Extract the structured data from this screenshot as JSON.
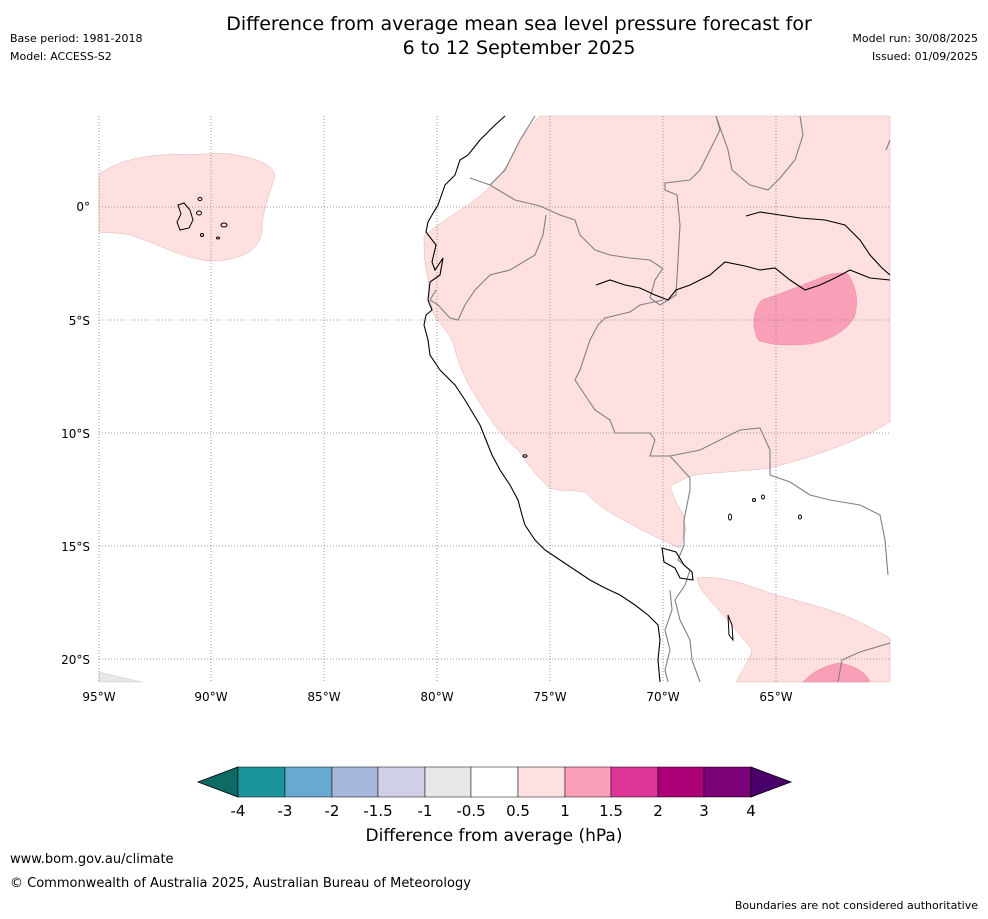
{
  "title": {
    "line1": "Difference from average mean sea level pressure forecast for",
    "line2": "6 to 12 September 2025"
  },
  "meta_left": {
    "base_period": "Base period: 1981-2018",
    "model": "Model: ACCESS-S2"
  },
  "meta_right": {
    "model_run": "Model run: 30/08/2025",
    "issued": "Issued: 01/09/2025"
  },
  "map": {
    "lat_labels": [
      "0°",
      "5°S",
      "10°S",
      "15°S",
      "20°S"
    ],
    "lon_labels": [
      "95°W",
      "90°W",
      "85°W",
      "80°W",
      "75°W",
      "70°W",
      "65°W"
    ]
  },
  "colorbar": {
    "title": "Difference from average (hPa)",
    "tick_labels": [
      "-4",
      "-3",
      "-2",
      "-1.5",
      "-1",
      "-0.5",
      "0.5",
      "1",
      "1.5",
      "2",
      "3",
      "4"
    ],
    "colors": {
      "lt_-4": "#0d6b63",
      "-4_-3": "#1a939a",
      "-3_-2": "#67a9d0",
      "-2_-1.5": "#a7b8dc",
      "-1.5_-1": "#cfd0e6",
      "-1_-0.5": "#e8e7ea",
      "-0.5_0.5": "#ffffff",
      "0.5_1": "#fde0df",
      "1_1.5": "#f9a0b8",
      "1.5_2": "#dd3498",
      "2_3": "#ad0178",
      "3_4": "#7a0177",
      "gt_4": "#4a006a"
    }
  },
  "footer": {
    "url": "www.bom.gov.au/climate",
    "copyright": "© Commonwealth of Australia 2025, Australian Bureau of Meteorology",
    "note": "Boundaries are not considered authoritative"
  }
}
